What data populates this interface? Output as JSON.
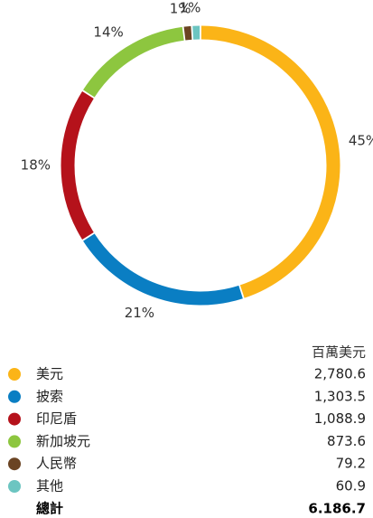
{
  "chart_data": {
    "type": "pie",
    "donut": true,
    "categories": [
      "美元",
      "披索",
      "印尼盾",
      "新加坡元",
      "人民幣",
      "其他"
    ],
    "values": [
      45,
      21,
      18,
      14,
      1,
      1
    ],
    "value_labels": [
      "45%",
      "21%",
      "18%",
      "14%",
      "1%",
      "1%"
    ],
    "colors": [
      "#fbb417",
      "#0a7ec3",
      "#b5121b",
      "#8dc63f",
      "#6b4423",
      "#6cc5c1"
    ]
  },
  "table": {
    "unit": "百萬美元",
    "amounts": [
      "2,780.6",
      "1,303.5",
      "1,088.9",
      "873.6",
      "79.2",
      "60.9"
    ],
    "total_label": "總計",
    "total": "6.186.7"
  }
}
